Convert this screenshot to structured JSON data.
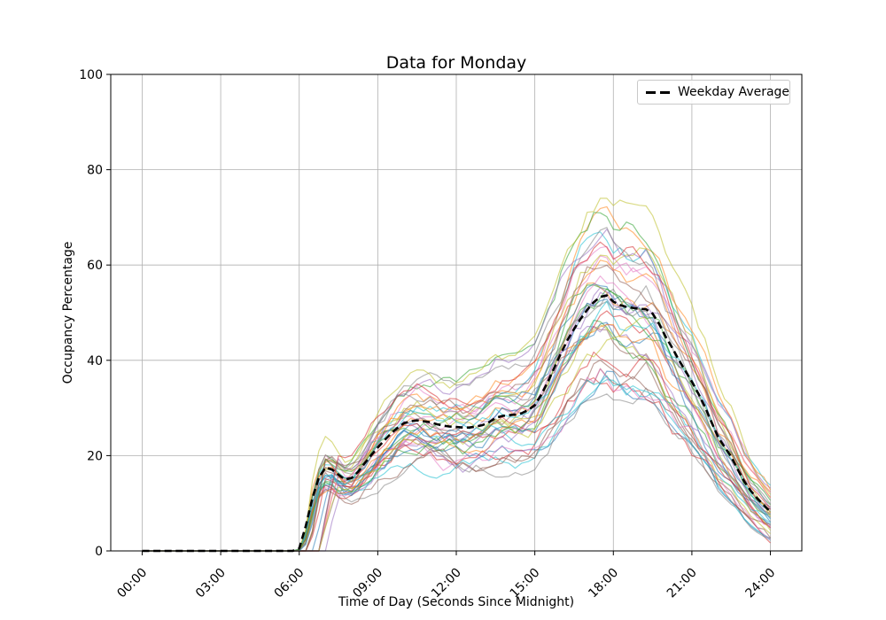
{
  "chart_data": {
    "type": "line",
    "title": "Data for Monday",
    "xlabel": "Time of Day (Seconds Since Midnight)",
    "ylabel": "Occupancy Percentage",
    "grid": true,
    "grid_color": "#b0b0b0",
    "spine_color": "#000000",
    "legend": {
      "label": "Weekday Average",
      "position": "upper right"
    },
    "xlim_seconds": [
      -4320,
      90720
    ],
    "ylim": [
      0,
      100
    ],
    "x_ticks": [
      {
        "label": "00:00",
        "seconds": 0
      },
      {
        "label": "03:00",
        "seconds": 10800
      },
      {
        "label": "06:00",
        "seconds": 21600
      },
      {
        "label": "09:00",
        "seconds": 32400
      },
      {
        "label": "12:00",
        "seconds": 43200
      },
      {
        "label": "15:00",
        "seconds": 54000
      },
      {
        "label": "18:00",
        "seconds": 64800
      },
      {
        "label": "21:00",
        "seconds": 75600
      },
      {
        "label": "24:00",
        "seconds": 86400
      }
    ],
    "y_ticks": [
      0,
      20,
      40,
      60,
      80,
      100
    ],
    "step_seconds": 900,
    "average_series": {
      "name": "Weekday Average",
      "color": "#000000",
      "dash": [
        8,
        4.6
      ],
      "width": 2.6,
      "values": [
        0,
        0,
        0,
        0,
        0,
        0,
        0,
        0,
        0,
        0,
        0,
        0,
        0,
        0,
        0,
        0,
        0,
        0,
        0,
        0,
        0,
        0,
        0,
        0,
        0.5,
        5.2,
        11.0,
        15.4,
        17.5,
        17.1,
        16.0,
        15.0,
        15.3,
        16.6,
        18.4,
        20.1,
        21.7,
        23.2,
        24.6,
        25.8,
        26.8,
        27.2,
        27.4,
        27.2,
        27.0,
        26.6,
        26.3,
        26.1,
        26.0,
        25.9,
        25.9,
        26.1,
        26.4,
        27.0,
        27.9,
        28.3,
        28.5,
        28.6,
        28.9,
        29.6,
        30.6,
        32.8,
        35.5,
        38.5,
        41.5,
        44.3,
        46.6,
        48.7,
        50.6,
        52.2,
        53.3,
        53.6,
        52.3,
        51.6,
        51.2,
        51.0,
        50.8,
        50.7,
        49.8,
        47.6,
        44.9,
        42.6,
        40.1,
        37.8,
        35.5,
        33.0,
        30.2,
        27.0,
        23.9,
        21.8,
        19.8,
        17.1,
        14.6,
        12.6,
        11.0,
        9.6,
        8.2
      ]
    },
    "individual_series": {
      "count": 40,
      "alpha": 0.55,
      "width": 1.2,
      "seed": 1337,
      "bias_pct": 0.22,
      "walk_step": 3.5,
      "walk_max": 9,
      "spread_base": 0.4,
      "spread_div": 55,
      "max_delay_steps": 6,
      "activity_start_index": 24,
      "value_clamp": [
        0.2,
        74
      ],
      "palette": [
        "#1f77b4",
        "#ff7f0e",
        "#2ca02c",
        "#d62728",
        "#9467bd",
        "#8c564b",
        "#e377c2",
        "#7f7f7f",
        "#bcbd22",
        "#17becf"
      ]
    }
  }
}
